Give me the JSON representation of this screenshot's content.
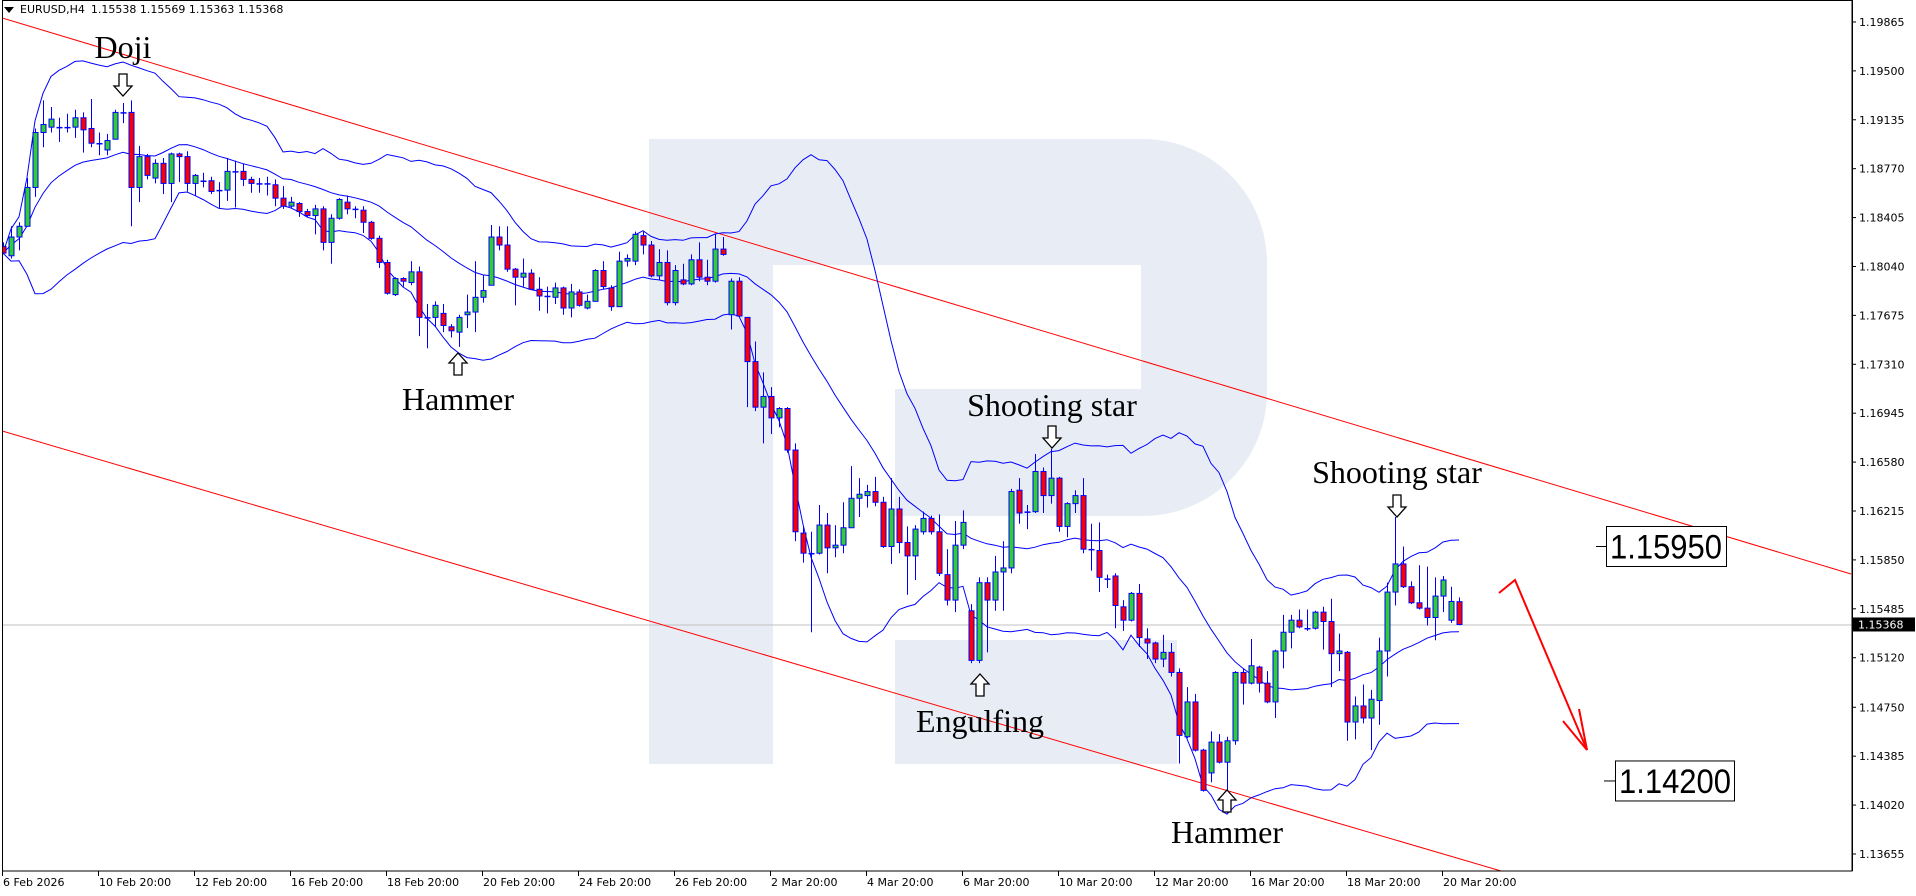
{
  "header": {
    "symbol": "EURUSD,H4",
    "ohlc": "1.15538 1.15569 1.15363 1.15368",
    "menu_icon": "triangle-down-icon"
  },
  "colors": {
    "bull": "#32cd32",
    "bear": "#ff0000",
    "outline": "#0000ff",
    "bands": "#0000ff",
    "channel": "#ff0000",
    "forecast": "#ff0000",
    "price_line": "#c0c0c0",
    "watermark": "#e8edf5"
  },
  "chart_data": {
    "type": "candlestick",
    "title": "",
    "indicator": "Bollinger Bands",
    "ylim": [
      1.13528,
      1.20029
    ],
    "grid": false,
    "y_ticks": [
      "1.19865",
      "1.19500",
      "1.19135",
      "1.18770",
      "1.18405",
      "1.18040",
      "1.17675",
      "1.17310",
      "1.16945",
      "1.16580",
      "1.16215",
      "1.15850",
      "1.15485",
      "1.15120",
      "1.14750",
      "1.14385",
      "1.14020",
      "1.13655"
    ],
    "x_tick_every_bars": 12,
    "x_ticks": [
      "6 Feb 2026",
      "10 Feb 20:00",
      "12 Feb 20:00",
      "16 Feb 20:00",
      "18 Feb 20:00",
      "20 Feb 20:00",
      "24 Feb 20:00",
      "26 Feb 20:00",
      "2 Mar 20:00",
      "4 Mar 20:00",
      "6 Mar 20:00",
      "10 Mar 20:00",
      "12 Mar 20:00",
      "16 Mar 20:00",
      "18 Mar 20:00",
      "20 Mar 20:00"
    ],
    "current_price": "1.15368",
    "ohlc_fields": [
      "open",
      "high",
      "low",
      "close"
    ],
    "candles": [
      [
        1.1819,
        1.1822,
        1.1813,
        1.1814
      ],
      [
        1.1812,
        1.1834,
        1.181,
        1.1826
      ],
      [
        1.1826,
        1.1837,
        1.1816,
        1.1834
      ],
      [
        1.1834,
        1.187,
        1.1834,
        1.1863
      ],
      [
        1.1863,
        1.1907,
        1.1856,
        1.1904
      ],
      [
        1.1904,
        1.1928,
        1.1893,
        1.191
      ],
      [
        1.1908,
        1.1923,
        1.1904,
        1.1914
      ],
      [
        1.1908,
        1.1915,
        1.1897,
        1.1907
      ],
      [
        1.1907,
        1.1918,
        1.1904,
        1.1908
      ],
      [
        1.1908,
        1.1921,
        1.19,
        1.1915
      ],
      [
        1.1915,
        1.1919,
        1.1889,
        1.1906
      ],
      [
        1.1907,
        1.1929,
        1.1893,
        1.1896
      ],
      [
        1.1896,
        1.1904,
        1.1887,
        1.1896
      ],
      [
        1.1891,
        1.1903,
        1.1887,
        1.1898
      ],
      [
        1.1899,
        1.1921,
        1.1899,
        1.1919
      ],
      [
        1.1919,
        1.1926,
        1.1911,
        1.1918
      ],
      [
        1.1919,
        1.1928,
        1.1834,
        1.1863
      ],
      [
        1.1863,
        1.1894,
        1.1852,
        1.1886
      ],
      [
        1.1886,
        1.1888,
        1.1869,
        1.1872
      ],
      [
        1.187,
        1.1884,
        1.1866,
        1.1881
      ],
      [
        1.1881,
        1.1885,
        1.1858,
        1.1866
      ],
      [
        1.1866,
        1.1889,
        1.1852,
        1.1888
      ],
      [
        1.1888,
        1.1889,
        1.1867,
        1.1886
      ],
      [
        1.1886,
        1.189,
        1.186,
        1.1866
      ],
      [
        1.1866,
        1.1873,
        1.1857,
        1.1872
      ],
      [
        1.1867,
        1.1874,
        1.1863,
        1.1868
      ],
      [
        1.1868,
        1.1871,
        1.1858,
        1.186
      ],
      [
        1.186,
        1.1867,
        1.1847,
        1.1861
      ],
      [
        1.1861,
        1.1885,
        1.1853,
        1.1875
      ],
      [
        1.1875,
        1.1883,
        1.1848,
        1.1875
      ],
      [
        1.1875,
        1.1881,
        1.1864,
        1.1869
      ],
      [
        1.1869,
        1.1871,
        1.1859,
        1.1866
      ],
      [
        1.1866,
        1.187,
        1.1859,
        1.1866
      ],
      [
        1.1866,
        1.1871,
        1.1857,
        1.1865
      ],
      [
        1.1865,
        1.1869,
        1.1849,
        1.1855
      ],
      [
        1.1855,
        1.1864,
        1.1847,
        1.1849
      ],
      [
        1.1849,
        1.1856,
        1.1848,
        1.1852
      ],
      [
        1.1851,
        1.1852,
        1.1841,
        1.1845
      ],
      [
        1.1845,
        1.1847,
        1.1841,
        1.1842
      ],
      [
        1.1842,
        1.185,
        1.1828,
        1.1847
      ],
      [
        1.1847,
        1.1849,
        1.1816,
        1.1822
      ],
      [
        1.1822,
        1.1843,
        1.1806,
        1.184
      ],
      [
        1.184,
        1.1855,
        1.1839,
        1.1854
      ],
      [
        1.1852,
        1.1857,
        1.1843,
        1.1847
      ],
      [
        1.1847,
        1.1849,
        1.184,
        1.1847
      ],
      [
        1.1846,
        1.1849,
        1.1829,
        1.1837
      ],
      [
        1.1837,
        1.1838,
        1.1824,
        1.1825
      ],
      [
        1.1825,
        1.1827,
        1.1803,
        1.1807
      ],
      [
        1.1807,
        1.1809,
        1.1783,
        1.1784
      ],
      [
        1.1783,
        1.1796,
        1.1782,
        1.1795
      ],
      [
        1.1795,
        1.1796,
        1.1789,
        1.1793
      ],
      [
        1.1792,
        1.1808,
        1.179,
        1.18
      ],
      [
        1.18,
        1.1804,
        1.1752,
        1.1766
      ],
      [
        1.1766,
        1.1776,
        1.1743,
        1.1766
      ],
      [
        1.1766,
        1.1778,
        1.1759,
        1.1775
      ],
      [
        1.1769,
        1.1776,
        1.1755,
        1.176
      ],
      [
        1.1759,
        1.1761,
        1.1751,
        1.1756
      ],
      [
        1.1755,
        1.1768,
        1.1744,
        1.1766
      ],
      [
        1.1768,
        1.1783,
        1.1758,
        1.177
      ],
      [
        1.177,
        1.1808,
        1.1755,
        1.1781
      ],
      [
        1.1781,
        1.1798,
        1.1777,
        1.1786
      ],
      [
        1.179,
        1.1835,
        1.179,
        1.1826
      ],
      [
        1.1826,
        1.1834,
        1.1816,
        1.182
      ],
      [
        1.182,
        1.1834,
        1.18,
        1.1802
      ],
      [
        1.1802,
        1.1803,
        1.1775,
        1.1796
      ],
      [
        1.1796,
        1.181,
        1.1789,
        1.1799
      ],
      [
        1.1799,
        1.1802,
        1.1787,
        1.1787
      ],
      [
        1.1787,
        1.1796,
        1.1771,
        1.1782
      ],
      [
        1.1782,
        1.1789,
        1.1769,
        1.1781
      ],
      [
        1.1781,
        1.1792,
        1.1776,
        1.1788
      ],
      [
        1.1788,
        1.1789,
        1.1768,
        1.1773
      ],
      [
        1.1773,
        1.1791,
        1.1766,
        1.1785
      ],
      [
        1.1785,
        1.1787,
        1.1774,
        1.1775
      ],
      [
        1.1773,
        1.1783,
        1.1772,
        1.1778
      ],
      [
        1.1778,
        1.1802,
        1.1778,
        1.1801
      ],
      [
        1.1801,
        1.1808,
        1.1787,
        1.1789
      ],
      [
        1.1788,
        1.179,
        1.1771,
        1.1774
      ],
      [
        1.1774,
        1.1815,
        1.1774,
        1.1808
      ],
      [
        1.1808,
        1.1813,
        1.1804,
        1.181
      ],
      [
        1.1808,
        1.183,
        1.1805,
        1.1828
      ],
      [
        1.1827,
        1.183,
        1.1813,
        1.182
      ],
      [
        1.182,
        1.1823,
        1.1796,
        1.1797
      ],
      [
        1.1797,
        1.1817,
        1.1794,
        1.1807
      ],
      [
        1.1807,
        1.1816,
        1.1775,
        1.1777
      ],
      [
        1.1777,
        1.1805,
        1.1775,
        1.1801
      ],
      [
        1.1794,
        1.1806,
        1.179,
        1.1791
      ],
      [
        1.1791,
        1.1813,
        1.179,
        1.1809
      ],
      [
        1.1809,
        1.1822,
        1.1793,
        1.1796
      ],
      [
        1.1796,
        1.1809,
        1.179,
        1.1793
      ],
      [
        1.1793,
        1.1828,
        1.1792,
        1.1817
      ],
      [
        1.1817,
        1.1826,
        1.1812,
        1.1813
      ],
      [
        1.1768,
        1.1795,
        1.1757,
        1.1793
      ],
      [
        1.1793,
        1.1796,
        1.1766,
        1.1767
      ],
      [
        1.1766,
        1.1766,
        1.1699,
        1.1733
      ],
      [
        1.1733,
        1.1748,
        1.1696,
        1.1699
      ],
      [
        1.1699,
        1.1725,
        1.1672,
        1.1707
      ],
      [
        1.1707,
        1.1714,
        1.1679,
        1.1691
      ],
      [
        1.1691,
        1.1699,
        1.1684,
        1.1698
      ],
      [
        1.1698,
        1.1699,
        1.1665,
        1.1667
      ],
      [
        1.1667,
        1.1672,
        1.1599,
        1.1606
      ],
      [
        1.1605,
        1.161,
        1.1583,
        1.159
      ],
      [
        1.159,
        1.1606,
        1.1531,
        1.159
      ],
      [
        1.159,
        1.1626,
        1.1589,
        1.1611
      ],
      [
        1.1611,
        1.162,
        1.1575,
        1.1594
      ],
      [
        1.1594,
        1.1611,
        1.1587,
        1.1596
      ],
      [
        1.1596,
        1.1628,
        1.159,
        1.1609
      ],
      [
        1.1609,
        1.1655,
        1.1609,
        1.1631
      ],
      [
        1.1631,
        1.1646,
        1.1617,
        1.1634
      ],
      [
        1.1633,
        1.1641,
        1.1624,
        1.1636
      ],
      [
        1.1636,
        1.1647,
        1.1625,
        1.1628
      ],
      [
        1.1628,
        1.1632,
        1.1594,
        1.1595
      ],
      [
        1.1595,
        1.1646,
        1.1582,
        1.1623
      ],
      [
        1.1623,
        1.1632,
        1.159,
        1.1598
      ],
      [
        1.1598,
        1.161,
        1.1559,
        1.1588
      ],
      [
        1.1588,
        1.1611,
        1.157,
        1.1608
      ],
      [
        1.1606,
        1.1621,
        1.1604,
        1.1616
      ],
      [
        1.1616,
        1.1618,
        1.1604,
        1.1606
      ],
      [
        1.1606,
        1.1619,
        1.1573,
        1.1575
      ],
      [
        1.1574,
        1.1593,
        1.1551,
        1.1555
      ],
      [
        1.1555,
        1.1614,
        1.1546,
        1.1596
      ],
      [
        1.1596,
        1.1622,
        1.1593,
        1.1613
      ],
      [
        1.1547,
        1.1552,
        1.1508,
        1.151
      ],
      [
        1.151,
        1.1572,
        1.1508,
        1.1568
      ],
      [
        1.1568,
        1.1572,
        1.1516,
        1.1555
      ],
      [
        1.1555,
        1.1588,
        1.1547,
        1.1576
      ],
      [
        1.1576,
        1.1599,
        1.1547,
        1.1579
      ],
      [
        1.1579,
        1.1638,
        1.1575,
        1.1636
      ],
      [
        1.1637,
        1.1646,
        1.1612,
        1.162
      ],
      [
        1.162,
        1.1626,
        1.1608,
        1.1621
      ],
      [
        1.1621,
        1.1664,
        1.162,
        1.1651
      ],
      [
        1.1651,
        1.1654,
        1.162,
        1.1633
      ],
      [
        1.1633,
        1.1668,
        1.1627,
        1.1646
      ],
      [
        1.1646,
        1.1647,
        1.1606,
        1.161
      ],
      [
        1.161,
        1.1628,
        1.1602,
        1.1627
      ],
      [
        1.1627,
        1.1637,
        1.162,
        1.1633
      ],
      [
        1.1633,
        1.1646,
        1.159,
        1.1593
      ],
      [
        1.1593,
        1.1612,
        1.1577,
        1.1592
      ],
      [
        1.1592,
        1.1613,
        1.1561,
        1.1572
      ],
      [
        1.1571,
        1.1574,
        1.1564,
        1.1571
      ],
      [
        1.1573,
        1.1575,
        1.1534,
        1.1551
      ],
      [
        1.155,
        1.1555,
        1.1532,
        1.154
      ],
      [
        1.154,
        1.1561,
        1.1539,
        1.156
      ],
      [
        1.156,
        1.1567,
        1.152,
        1.1527
      ],
      [
        1.1526,
        1.1534,
        1.1511,
        1.1523
      ],
      [
        1.1523,
        1.1524,
        1.1508,
        1.1511
      ],
      [
        1.1511,
        1.1529,
        1.1505,
        1.1516
      ],
      [
        1.1516,
        1.1523,
        1.1498,
        1.1501
      ],
      [
        1.1501,
        1.1504,
        1.1433,
        1.1454
      ],
      [
        1.1453,
        1.149,
        1.1452,
        1.1479
      ],
      [
        1.1479,
        1.1485,
        1.1442,
        1.1443
      ],
      [
        1.1443,
        1.1444,
        1.1412,
        1.1413
      ],
      [
        1.1426,
        1.1457,
        1.1419,
        1.1449
      ],
      [
        1.1449,
        1.1455,
        1.1433,
        1.1434
      ],
      [
        1.1434,
        1.1453,
        1.1396,
        1.145
      ],
      [
        1.145,
        1.1502,
        1.1447,
        1.1501
      ],
      [
        1.1501,
        1.1504,
        1.1477,
        1.1493
      ],
      [
        1.1493,
        1.1526,
        1.1492,
        1.1506
      ],
      [
        1.1505,
        1.1506,
        1.1486,
        1.1493
      ],
      [
        1.1493,
        1.1502,
        1.1478,
        1.1479
      ],
      [
        1.1479,
        1.1518,
        1.1467,
        1.1517
      ],
      [
        1.1517,
        1.1544,
        1.1504,
        1.1531
      ],
      [
        1.1531,
        1.1544,
        1.1519,
        1.154
      ],
      [
        1.154,
        1.1548,
        1.1534,
        1.1535
      ],
      [
        1.1534,
        1.1548,
        1.1532,
        1.1534
      ],
      [
        1.1534,
        1.1547,
        1.1533,
        1.1546
      ],
      [
        1.1546,
        1.155,
        1.1518,
        1.1539
      ],
      [
        1.1539,
        1.1556,
        1.149,
        1.1515
      ],
      [
        1.1515,
        1.153,
        1.1502,
        1.1517
      ],
      [
        1.1516,
        1.1517,
        1.145,
        1.1464
      ],
      [
        1.1464,
        1.1483,
        1.1451,
        1.1476
      ],
      [
        1.1476,
        1.1492,
        1.1463,
        1.1467
      ],
      [
        1.1467,
        1.1488,
        1.1443,
        1.1481
      ],
      [
        1.148,
        1.1527,
        1.1462,
        1.1517
      ],
      [
        1.1517,
        1.1568,
        1.1498,
        1.1561
      ],
      [
        1.1561,
        1.1617,
        1.1551,
        1.1582
      ],
      [
        1.1582,
        1.1595,
        1.1564,
        1.1565
      ],
      [
        1.1565,
        1.1569,
        1.1552,
        1.1553
      ],
      [
        1.1553,
        1.1581,
        1.1548,
        1.1549
      ],
      [
        1.1549,
        1.158,
        1.1536,
        1.1542
      ],
      [
        1.1542,
        1.1572,
        1.1525,
        1.1558
      ],
      [
        1.1558,
        1.1573,
        1.1546,
        1.157
      ],
      [
        1.154,
        1.1565,
        1.1538,
        1.1554
      ],
      [
        1.15538,
        1.15569,
        1.15363,
        1.15368
      ]
    ],
    "patterns": [
      {
        "text": "Doji",
        "arrow": "down",
        "bar": 15
      },
      {
        "text": "Hammer",
        "arrow": "up",
        "bar": 57
      },
      {
        "text": "Shooting star",
        "arrow": "down",
        "bar": 131
      },
      {
        "text": "Engulfing",
        "arrow": "up",
        "bar": 122
      },
      {
        "text": "Hammer",
        "arrow": "up",
        "bar": 153
      },
      {
        "text": "Shooting star",
        "arrow": "down",
        "bar": 174
      }
    ],
    "levels": [
      {
        "label": "1.15950",
        "price": 1.1595
      },
      {
        "label": "1.14200",
        "price": 1.142
      }
    ]
  }
}
